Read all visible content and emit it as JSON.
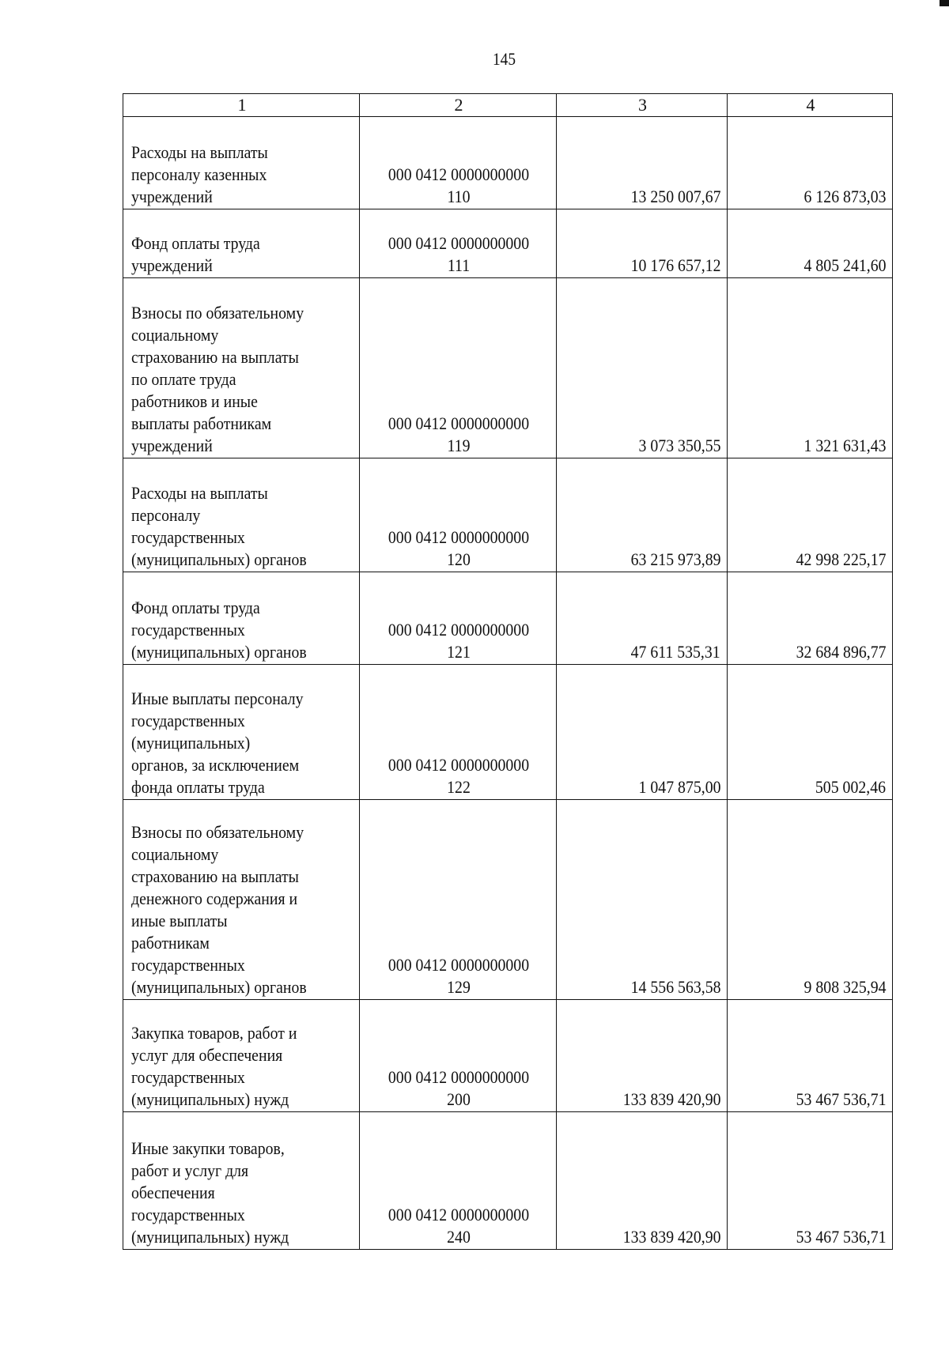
{
  "page_number": "145",
  "table": {
    "headers": [
      "1",
      "2",
      "3",
      "4"
    ],
    "rows": [
      {
        "name": "Расходы на выплаты\nперсоналу казенных\nучреждений",
        "code": "000 0412 0000000000\n110",
        "col3": "13 250 007,67",
        "col4": "6 126 873,03"
      },
      {
        "name": "Фонд оплаты труда\nучреждений",
        "code": "000 0412 0000000000\n111",
        "col3": "10 176 657,12",
        "col4": "4 805 241,60"
      },
      {
        "name": "Взносы по обязательному\nсоциальному\nстрахованию на выплаты\nпо оплате труда\nработников и иные\nвыплаты работникам\nучреждений",
        "code": "000 0412 0000000000\n119",
        "col3": "3 073 350,55",
        "col4": "1 321 631,43"
      },
      {
        "name": "Расходы на выплаты\nперсоналу\nгосударственных\n(муниципальных) органов",
        "code": "000 0412 0000000000\n120",
        "col3": "63 215 973,89",
        "col4": "42 998 225,17"
      },
      {
        "name": "Фонд оплаты труда\nгосударственных\n(муниципальных) органов",
        "code": "000 0412 0000000000\n121",
        "col3": "47 611 535,31",
        "col4": "32 684 896,77"
      },
      {
        "name": "Иные выплаты персоналу\nгосударственных\n(муниципальных)\nорганов, за исключением\nфонда оплаты труда",
        "code": "000 0412 0000000000\n122",
        "col3": "1 047 875,00",
        "col4": "505 002,46"
      },
      {
        "name": "Взносы по обязательному\nсоциальному\nстрахованию на выплаты\nденежного содержания и\nиные выплаты\nработникам\nгосударственных\n(муниципальных) органов",
        "code": "000 0412 0000000000\n129",
        "col3": "14 556 563,58",
        "col4": "9 808 325,94"
      },
      {
        "name": "Закупка товаров, работ и\nуслуг для обеспечения\nгосударственных\n(муниципальных) нужд",
        "code": "000 0412 0000000000\n200",
        "col3": "133 839 420,90",
        "col4": "53 467 536,71"
      },
      {
        "name": "Иные закупки товаров,\nработ и услуг для\nобеспечения\nгосударственных\n(муниципальных) нужд",
        "code": "000 0412 0000000000\n240",
        "col3": "133 839 420,90",
        "col4": "53 467 536,71"
      }
    ]
  }
}
